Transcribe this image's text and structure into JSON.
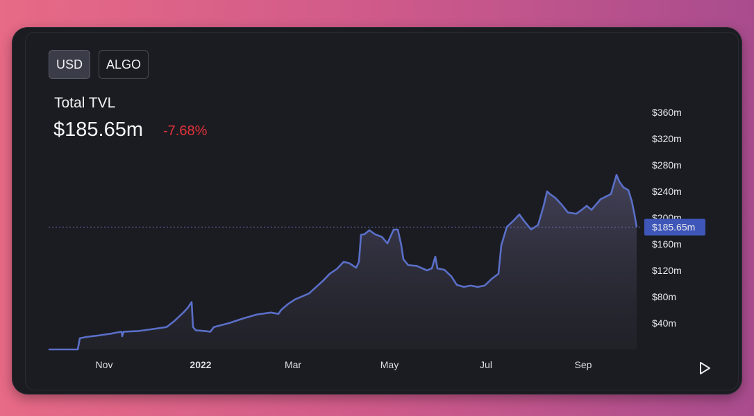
{
  "currency_toggle": {
    "usd": "USD",
    "algo": "ALGO",
    "selected": "USD"
  },
  "header": {
    "title": "Total TVL",
    "value": "$185.65m",
    "change": "-7.68%"
  },
  "colors": {
    "line": "#5a6fc8",
    "change_negative": "#e2323a",
    "price_tag": "#3e56b8",
    "background": "#1b1c21"
  },
  "icons": {
    "play": "play-icon"
  },
  "chart_data": {
    "type": "area",
    "title": "Total TVL",
    "xlabel": "",
    "ylabel": "",
    "x_ticks": [
      "Nov",
      "2022",
      "Mar",
      "May",
      "Jul",
      "Sep"
    ],
    "y_ticks": [
      "$40m",
      "$80m",
      "$120m",
      "$160m",
      "$200m",
      "$240m",
      "$280m",
      "$320m",
      "$360m"
    ],
    "ylim": [
      0,
      380
    ],
    "current_label": "$185.65m",
    "current_value": 185.65,
    "grid": false,
    "series": [
      {
        "values": [
          [
            0,
            0
          ],
          [
            42,
            0
          ],
          [
            45,
            17
          ],
          [
            55,
            19
          ],
          [
            70,
            21
          ],
          [
            90,
            24
          ],
          [
            105,
            27
          ],
          [
            106,
            20
          ],
          [
            108,
            27
          ],
          [
            130,
            28
          ],
          [
            150,
            31
          ],
          [
            170,
            34
          ],
          [
            181,
            43
          ],
          [
            195,
            57
          ],
          [
            201,
            64
          ],
          [
            206,
            72
          ],
          [
            208,
            34
          ],
          [
            212,
            29
          ],
          [
            225,
            28
          ],
          [
            233,
            27
          ],
          [
            238,
            34
          ],
          [
            260,
            40
          ],
          [
            280,
            47
          ],
          [
            300,
            53
          ],
          [
            320,
            56
          ],
          [
            331,
            54
          ],
          [
            335,
            60
          ],
          [
            345,
            69
          ],
          [
            355,
            76
          ],
          [
            375,
            85
          ],
          [
            395,
            104
          ],
          [
            405,
            115
          ],
          [
            415,
            122
          ],
          [
            425,
            133
          ],
          [
            433,
            131
          ],
          [
            443,
            124
          ],
          [
            447,
            133
          ],
          [
            450,
            174
          ],
          [
            455,
            175
          ],
          [
            462,
            181
          ],
          [
            470,
            175
          ],
          [
            480,
            171
          ],
          [
            488,
            161
          ],
          [
            497,
            182
          ],
          [
            503,
            182
          ],
          [
            508,
            158
          ],
          [
            511,
            137
          ],
          [
            518,
            128
          ],
          [
            530,
            127
          ],
          [
            545,
            120
          ],
          [
            552,
            123
          ],
          [
            557,
            141
          ],
          [
            560,
            123
          ],
          [
            570,
            121
          ],
          [
            580,
            111
          ],
          [
            588,
            98
          ],
          [
            598,
            95
          ],
          [
            608,
            97
          ],
          [
            618,
            95
          ],
          [
            628,
            97
          ],
          [
            638,
            107
          ],
          [
            648,
            115
          ],
          [
            652,
            158
          ],
          [
            660,
            186
          ],
          [
            670,
            196
          ],
          [
            678,
            205
          ],
          [
            685,
            195
          ],
          [
            695,
            182
          ],
          [
            705,
            189
          ],
          [
            713,
            218
          ],
          [
            718,
            240
          ],
          [
            722,
            236
          ],
          [
            730,
            230
          ],
          [
            738,
            221
          ],
          [
            748,
            208
          ],
          [
            760,
            206
          ],
          [
            768,
            212
          ],
          [
            775,
            218
          ],
          [
            782,
            212
          ],
          [
            795,
            228
          ],
          [
            810,
            236
          ],
          [
            818,
            265
          ],
          [
            822,
            255
          ],
          [
            828,
            246
          ],
          [
            835,
            242
          ],
          [
            840,
            225
          ],
          [
            844,
            204
          ],
          [
            847,
            185.65
          ]
        ]
      }
    ]
  }
}
